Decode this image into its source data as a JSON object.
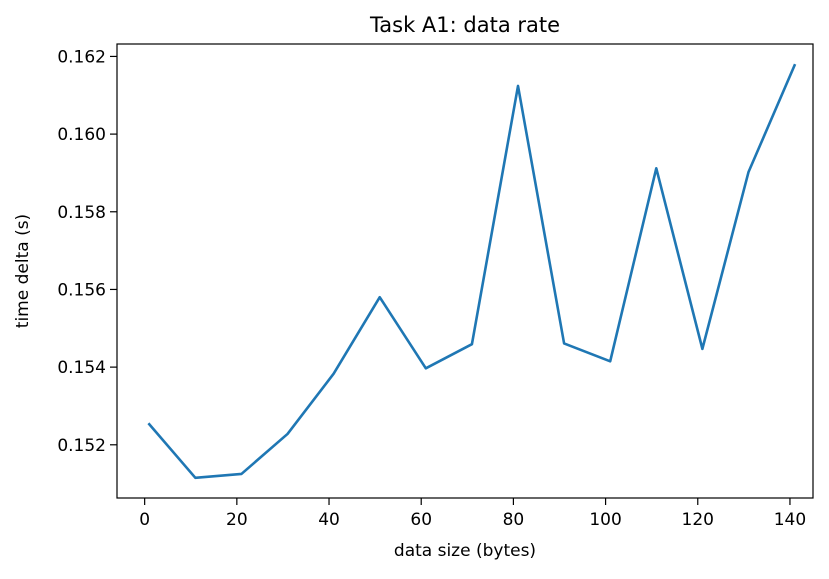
{
  "chart_data": {
    "type": "line",
    "title": "Task A1: data rate",
    "xlabel": "data size (bytes)",
    "ylabel": "time delta (s)",
    "xlim": [
      -6,
      145
    ],
    "ylim": [
      0.15063,
      0.16232
    ],
    "x_ticks": [
      0,
      20,
      40,
      60,
      80,
      100,
      120,
      140
    ],
    "y_ticks": [
      0.152,
      0.154,
      0.156,
      0.158,
      0.16,
      0.162
    ],
    "x_tick_labels": [
      "0",
      "20",
      "40",
      "60",
      "80",
      "100",
      "120",
      "140"
    ],
    "y_tick_labels": [
      "0.152",
      "0.154",
      "0.156",
      "0.158",
      "0.160",
      "0.162"
    ],
    "grid": false,
    "series": [
      {
        "color": "#1f77b4",
        "x": [
          1,
          11,
          21,
          31,
          41,
          51,
          61,
          71,
          81,
          91,
          101,
          111,
          121,
          131,
          141
        ],
        "y": [
          0.15253,
          0.15115,
          0.15125,
          0.15228,
          0.15383,
          0.1558,
          0.15397,
          0.15459,
          0.16124,
          0.15461,
          0.15415,
          0.15912,
          0.15447,
          0.15902,
          0.16177
        ]
      }
    ]
  }
}
